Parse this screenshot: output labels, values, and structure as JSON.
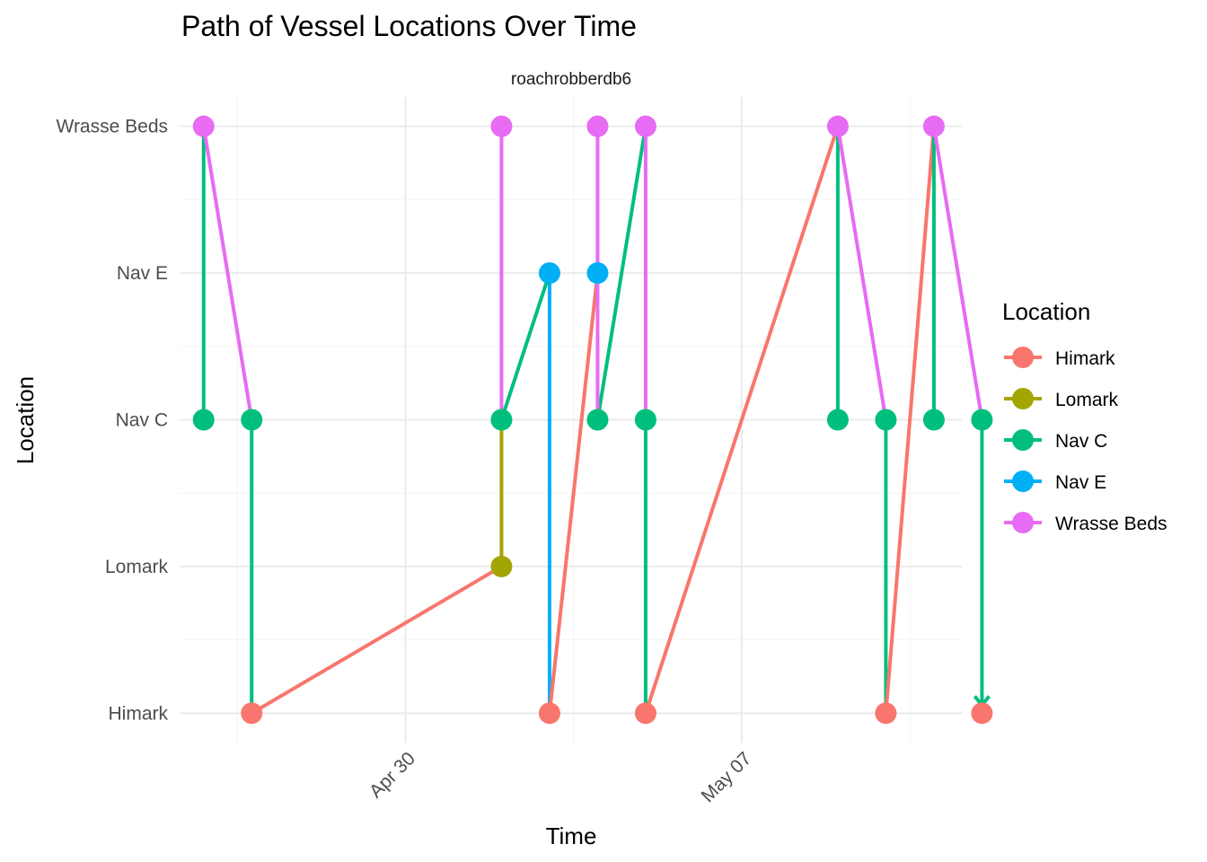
{
  "chart_data": {
    "type": "line",
    "title": "Path of Vessel Locations Over Time",
    "facet_label": "roachrobberdb6",
    "xlabel": "Time",
    "ylabel": "Location",
    "x_ticks": [
      {
        "value": 30.0,
        "label": "Apr 30"
      },
      {
        "value": 37.0,
        "label": "May 07"
      }
    ],
    "x_minor_ticks": [
      26.5,
      33.5,
      40.5
    ],
    "xlim": [
      25.3,
      41.6
    ],
    "categories": [
      "Himark",
      "Lomark",
      "Nav C",
      "Nav E",
      "Wrasse Beds"
    ],
    "ylim": [
      0.8,
      5.2
    ],
    "grid": true,
    "legend": {
      "title": "Location",
      "placement": "right",
      "entries": [
        "Himark",
        "Lomark",
        "Nav C",
        "Nav E",
        "Wrasse Beds"
      ]
    },
    "colors": {
      "Himark": "#F8766D",
      "Lomark": "#A3A500",
      "Nav C": "#00BF7D",
      "Nav E": "#00B0F6",
      "Wrasse Beds": "#E76BF3"
    },
    "points": [
      {
        "x": 25.8,
        "location": "Wrasse Beds"
      },
      {
        "x": 25.8,
        "location": "Nav C"
      },
      {
        "x": 26.8,
        "location": "Nav C"
      },
      {
        "x": 26.8,
        "location": "Himark"
      },
      {
        "x": 32.0,
        "location": "Wrasse Beds"
      },
      {
        "x": 32.0,
        "location": "Nav C"
      },
      {
        "x": 32.0,
        "location": "Lomark"
      },
      {
        "x": 33.0,
        "location": "Nav E"
      },
      {
        "x": 33.0,
        "location": "Himark"
      },
      {
        "x": 34.0,
        "location": "Wrasse Beds"
      },
      {
        "x": 34.0,
        "location": "Nav E"
      },
      {
        "x": 34.0,
        "location": "Nav C"
      },
      {
        "x": 35.0,
        "location": "Wrasse Beds"
      },
      {
        "x": 35.0,
        "location": "Nav C"
      },
      {
        "x": 35.0,
        "location": "Himark"
      },
      {
        "x": 39.0,
        "location": "Wrasse Beds"
      },
      {
        "x": 39.0,
        "location": "Nav C"
      },
      {
        "x": 40.0,
        "location": "Nav C"
      },
      {
        "x": 40.0,
        "location": "Himark"
      },
      {
        "x": 41.0,
        "location": "Wrasse Beds"
      },
      {
        "x": 41.0,
        "location": "Nav C"
      },
      {
        "x": 42.0,
        "location": "Nav C"
      },
      {
        "x": 42.0,
        "location": "Himark"
      }
    ],
    "segments": [
      {
        "x1": 25.8,
        "y1": "Wrasse Beds",
        "x2": 25.8,
        "y2": "Nav C",
        "color_of": "Nav C"
      },
      {
        "x1": 26.8,
        "y1": "Nav C",
        "x2": 26.8,
        "y2": "Himark",
        "color_of": "Nav C"
      },
      {
        "x1": 26.8,
        "y1": "Himark",
        "x2": 32.0,
        "y2": "Lomark",
        "color_of": "Himark"
      },
      {
        "x1": 32.0,
        "y1": "Lomark",
        "x2": 32.0,
        "y2": "Nav C",
        "color_of": "Lomark"
      },
      {
        "x1": 32.0,
        "y1": "Nav C",
        "x2": 33.0,
        "y2": "Nav E",
        "color_of": "Nav C"
      },
      {
        "x1": 33.0,
        "y1": "Nav E",
        "x2": 33.0,
        "y2": "Himark",
        "color_of": "Nav E"
      },
      {
        "x1": 33.0,
        "y1": "Himark",
        "x2": 34.0,
        "y2": "Nav E",
        "color_of": "Himark"
      },
      {
        "x1": 34.0,
        "y1": "Nav C",
        "x2": 35.0,
        "y2": "Wrasse Beds",
        "color_of": "Nav C"
      },
      {
        "x1": 35.0,
        "y1": "Nav C",
        "x2": 35.0,
        "y2": "Himark",
        "color_of": "Nav C"
      },
      {
        "x1": 35.0,
        "y1": "Himark",
        "x2": 39.0,
        "y2": "Wrasse Beds",
        "color_of": "Himark"
      },
      {
        "x1": 39.0,
        "y1": "Wrasse Beds",
        "x2": 39.0,
        "y2": "Nav C",
        "color_of": "Nav C"
      },
      {
        "x1": 40.0,
        "y1": "Nav C",
        "x2": 40.0,
        "y2": "Himark",
        "color_of": "Nav C"
      },
      {
        "x1": 40.0,
        "y1": "Himark",
        "x2": 41.0,
        "y2": "Wrasse Beds",
        "color_of": "Himark"
      },
      {
        "x1": 41.0,
        "y1": "Wrasse Beds",
        "x2": 41.0,
        "y2": "Nav C",
        "color_of": "Nav C"
      },
      {
        "x1": 42.0,
        "y1": "Nav C",
        "x2": 42.0,
        "y2": "Himark",
        "color_of": "Nav C"
      },
      {
        "x1": 25.8,
        "y1": "Wrasse Beds",
        "x2": 26.8,
        "y2": "Nav C",
        "color_of": "Wrasse Beds"
      },
      {
        "x1": 32.0,
        "y1": "Wrasse Beds",
        "x2": 32.0,
        "y2": "Nav C",
        "color_of": "Wrasse Beds"
      },
      {
        "x1": 34.0,
        "y1": "Wrasse Beds",
        "x2": 34.0,
        "y2": "Nav C",
        "color_of": "Wrasse Beds"
      },
      {
        "x1": 35.0,
        "y1": "Wrasse Beds",
        "x2": 35.0,
        "y2": "Nav C",
        "color_of": "Wrasse Beds"
      },
      {
        "x1": 39.0,
        "y1": "Wrasse Beds",
        "x2": 40.0,
        "y2": "Nav C",
        "color_of": "Wrasse Beds"
      },
      {
        "x1": 41.0,
        "y1": "Wrasse Beds",
        "x2": 42.0,
        "y2": "Nav C",
        "color_of": "Wrasse Beds"
      }
    ]
  }
}
